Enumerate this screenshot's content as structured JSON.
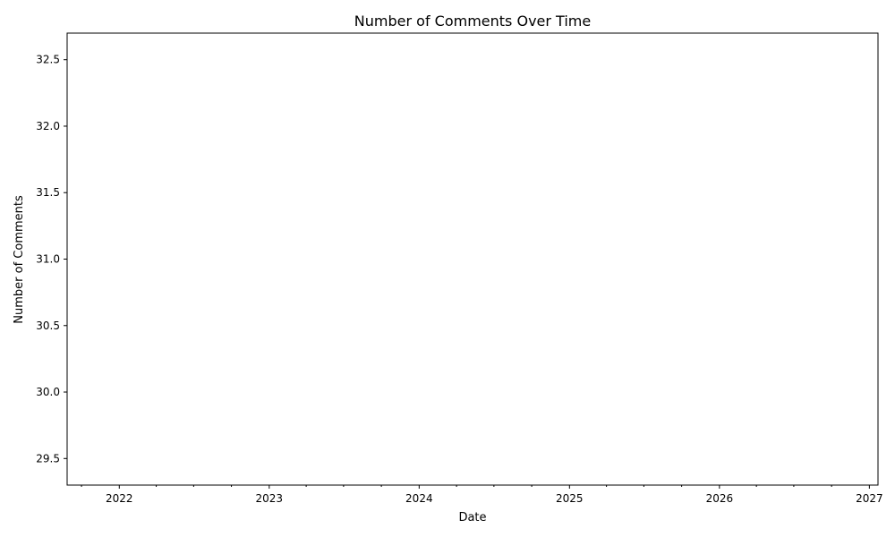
{
  "chart_data": {
    "type": "line",
    "title": "Number of Comments Over Time",
    "xlabel": "Date",
    "ylabel": "Number of Comments",
    "x_major_ticks": [
      "2022",
      "2023",
      "2024",
      "2025",
      "2026",
      "2027"
    ],
    "x_minor_ticks": [
      "2021-10",
      "2022-04",
      "2022-07",
      "2022-10",
      "2023-04",
      "2023-07",
      "2023-10",
      "2024-04",
      "2024-07",
      "2024-10",
      "2025-04",
      "2025-07",
      "2025-10",
      "2026-04",
      "2026-07",
      "2026-10"
    ],
    "xlim": [
      "2021-08-27",
      "2027-01-22"
    ],
    "y_ticks": [
      29.5,
      30.0,
      30.5,
      31.0,
      31.5,
      32.0,
      32.5
    ],
    "ylim": [
      29.3,
      32.7
    ],
    "series": [],
    "grid": false,
    "legend": "none"
  }
}
